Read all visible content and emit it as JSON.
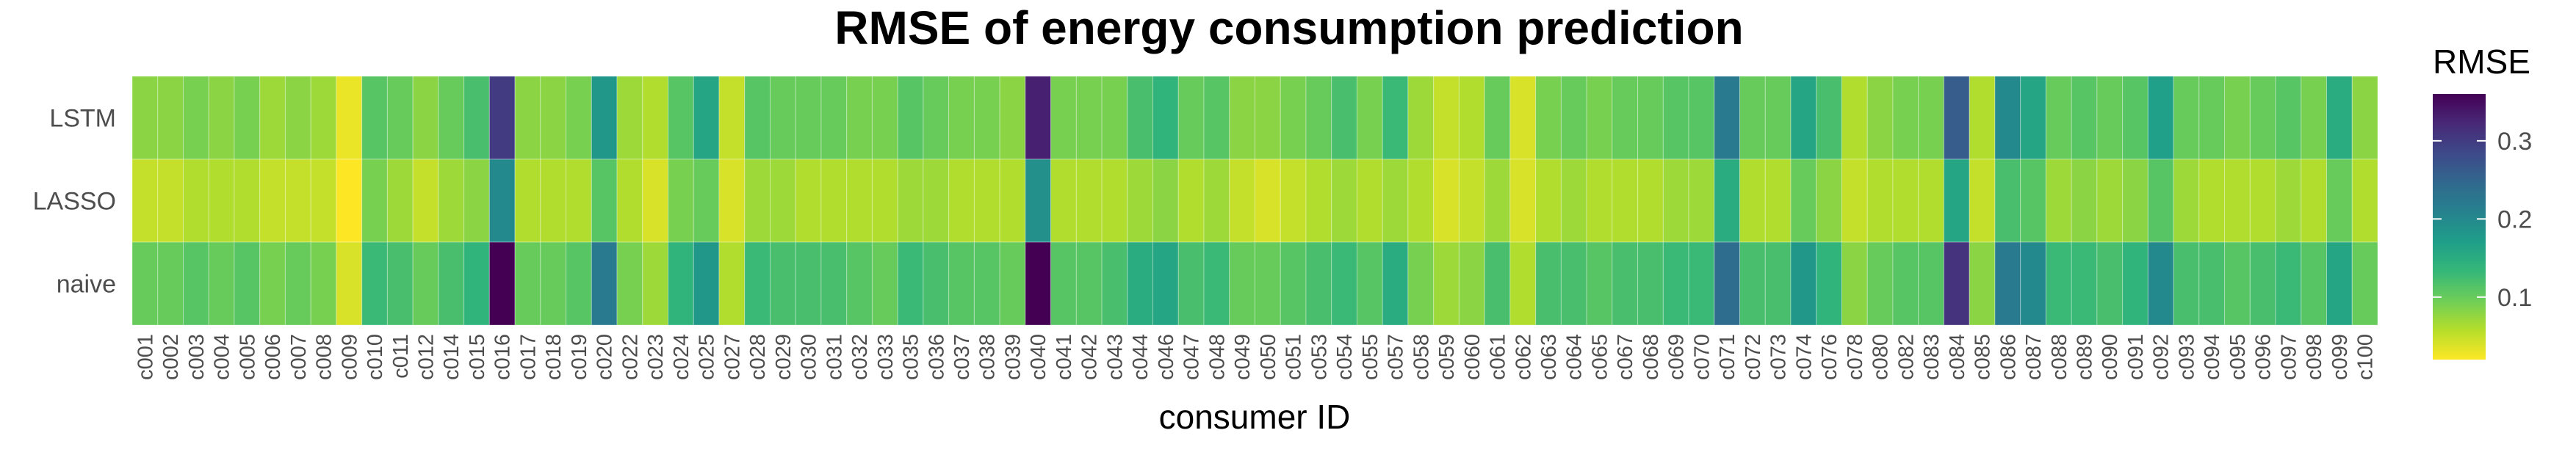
{
  "chart_data": {
    "type": "heatmap",
    "title": "RMSE of energy consumption prediction",
    "xlabel": "consumer ID",
    "ylabel": "",
    "rows": [
      "LSTM",
      "LASSO",
      "naive"
    ],
    "columns": [
      "c001",
      "c002",
      "c003",
      "c004",
      "c005",
      "c006",
      "c007",
      "c008",
      "c009",
      "c010",
      "c011",
      "c012",
      "c014",
      "c015",
      "c016",
      "c017",
      "c018",
      "c019",
      "c020",
      "c022",
      "c023",
      "c024",
      "c025",
      "c027",
      "c028",
      "c029",
      "c030",
      "c031",
      "c032",
      "c033",
      "c035",
      "c036",
      "c037",
      "c038",
      "c039",
      "c040",
      "c041",
      "c042",
      "c043",
      "c044",
      "c046",
      "c047",
      "c048",
      "c049",
      "c050",
      "c051",
      "c053",
      "c054",
      "c055",
      "c057",
      "c058",
      "c059",
      "c060",
      "c061",
      "c062",
      "c063",
      "c064",
      "c065",
      "c067",
      "c068",
      "c069",
      "c070",
      "c071",
      "c072",
      "c073",
      "c074",
      "c076",
      "c078",
      "c080",
      "c082",
      "c083",
      "c084",
      "c085",
      "c086",
      "c087",
      "c088",
      "c089",
      "c090",
      "c091",
      "c092",
      "c093",
      "c094",
      "c095",
      "c096",
      "c097",
      "c098",
      "c099",
      "c100"
    ],
    "values": [
      [
        0.08,
        0.08,
        0.09,
        0.08,
        0.09,
        0.07,
        0.08,
        0.07,
        0.03,
        0.11,
        0.1,
        0.08,
        0.1,
        0.12,
        0.3,
        0.08,
        0.08,
        0.09,
        0.18,
        0.07,
        0.06,
        0.11,
        0.16,
        0.05,
        0.11,
        0.1,
        0.1,
        0.1,
        0.09,
        0.09,
        0.11,
        0.1,
        0.09,
        0.09,
        0.08,
        0.33,
        0.09,
        0.09,
        0.09,
        0.12,
        0.14,
        0.1,
        0.11,
        0.08,
        0.08,
        0.09,
        0.1,
        0.12,
        0.09,
        0.13,
        0.07,
        0.05,
        0.06,
        0.1,
        0.04,
        0.09,
        0.1,
        0.09,
        0.1,
        0.1,
        0.11,
        0.11,
        0.22,
        0.1,
        0.1,
        0.16,
        0.12,
        0.06,
        0.08,
        0.09,
        0.09,
        0.26,
        0.06,
        0.2,
        0.16,
        0.1,
        0.11,
        0.1,
        0.11,
        0.17,
        0.1,
        0.1,
        0.09,
        0.1,
        0.11,
        0.09,
        0.15,
        0.08
      ],
      [
        0.05,
        0.05,
        0.06,
        0.06,
        0.06,
        0.05,
        0.05,
        0.05,
        0.02,
        0.09,
        0.07,
        0.05,
        0.07,
        0.08,
        0.2,
        0.06,
        0.06,
        0.06,
        0.11,
        0.06,
        0.04,
        0.09,
        0.1,
        0.04,
        0.07,
        0.07,
        0.06,
        0.06,
        0.06,
        0.06,
        0.07,
        0.07,
        0.06,
        0.06,
        0.06,
        0.19,
        0.06,
        0.06,
        0.06,
        0.07,
        0.08,
        0.06,
        0.07,
        0.05,
        0.04,
        0.05,
        0.06,
        0.07,
        0.06,
        0.07,
        0.06,
        0.04,
        0.05,
        0.07,
        0.04,
        0.06,
        0.07,
        0.06,
        0.06,
        0.06,
        0.07,
        0.07,
        0.15,
        0.06,
        0.06,
        0.1,
        0.08,
        0.05,
        0.06,
        0.06,
        0.06,
        0.16,
        0.05,
        0.12,
        0.11,
        0.07,
        0.08,
        0.07,
        0.08,
        0.11,
        0.07,
        0.06,
        0.06,
        0.06,
        0.07,
        0.06,
        0.1,
        0.06
      ],
      [
        0.1,
        0.1,
        0.11,
        0.1,
        0.11,
        0.09,
        0.1,
        0.09,
        0.04,
        0.13,
        0.12,
        0.1,
        0.12,
        0.14,
        0.36,
        0.1,
        0.1,
        0.11,
        0.22,
        0.09,
        0.07,
        0.14,
        0.18,
        0.06,
        0.13,
        0.12,
        0.12,
        0.12,
        0.11,
        0.1,
        0.13,
        0.12,
        0.11,
        0.11,
        0.1,
        0.36,
        0.11,
        0.11,
        0.12,
        0.15,
        0.16,
        0.12,
        0.13,
        0.1,
        0.1,
        0.11,
        0.12,
        0.13,
        0.11,
        0.15,
        0.09,
        0.07,
        0.08,
        0.12,
        0.06,
        0.12,
        0.12,
        0.11,
        0.12,
        0.12,
        0.13,
        0.13,
        0.24,
        0.12,
        0.12,
        0.18,
        0.14,
        0.08,
        0.1,
        0.11,
        0.11,
        0.31,
        0.08,
        0.22,
        0.2,
        0.13,
        0.13,
        0.12,
        0.14,
        0.2,
        0.12,
        0.12,
        0.11,
        0.12,
        0.13,
        0.11,
        0.16,
        0.1
      ]
    ],
    "colorbar": {
      "title": "RMSE",
      "min": 0.02,
      "max": 0.36,
      "ticks": [
        0.1,
        0.2,
        0.3
      ],
      "tick_labels": [
        "0.1",
        "0.2",
        "0.3"
      ]
    },
    "colormap": [
      "#fde725",
      "#b5de2b",
      "#6ece58",
      "#35b779",
      "#1f9e89",
      "#26828e",
      "#31688e",
      "#3e4989",
      "#482878",
      "#440154"
    ],
    "grid": false,
    "legend_position": "right"
  }
}
